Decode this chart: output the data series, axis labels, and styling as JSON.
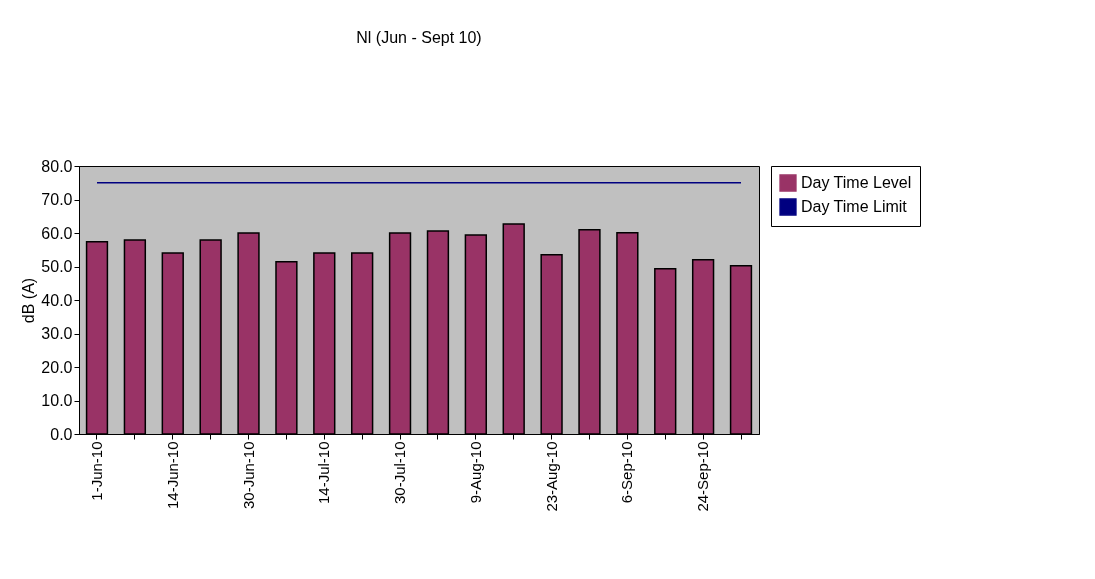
{
  "chart_data": {
    "type": "bar",
    "title": "Nl (Jun - Sept 10)",
    "ylabel": "dB (A)",
    "categories": [
      "1-Jun-10",
      null,
      "14-Jun-10",
      null,
      "30-Jun-10",
      null,
      "14-Jul-10",
      null,
      "30-Jul-10",
      null,
      "9-Aug-10",
      null,
      "23-Aug-10",
      null,
      "6-Sep-10",
      null,
      "24-Sep-10",
      null
    ],
    "series": [
      {
        "name": "Day Time Level",
        "color": "#993366",
        "values": [
          57.4,
          57.9,
          54.0,
          57.9,
          60.0,
          51.4,
          54.0,
          54.0,
          60.0,
          60.6,
          59.4,
          62.7,
          53.5,
          61.0,
          60.1,
          49.3,
          52.0,
          50.2
        ]
      },
      {
        "name": "Day Time Limit",
        "type": "line",
        "color": "#000080",
        "values": [
          75,
          75,
          75,
          75,
          75,
          75,
          75,
          75,
          75,
          75,
          75,
          75,
          75,
          75,
          75,
          75,
          75,
          75
        ]
      }
    ],
    "ylim": [
      0,
      80
    ],
    "yticks": [
      {
        "value": 0,
        "label": "0.0"
      },
      {
        "value": 10,
        "label": "10.0"
      },
      {
        "value": 20,
        "label": "20.0"
      },
      {
        "value": 30,
        "label": "30.0"
      },
      {
        "value": 40,
        "label": "40.0"
      },
      {
        "value": 50,
        "label": "50.0"
      },
      {
        "value": 60,
        "label": "60.0"
      },
      {
        "value": 70,
        "label": "70.0"
      },
      {
        "value": 80,
        "label": "80.0"
      }
    ],
    "grid": false,
    "legend": "right"
  }
}
